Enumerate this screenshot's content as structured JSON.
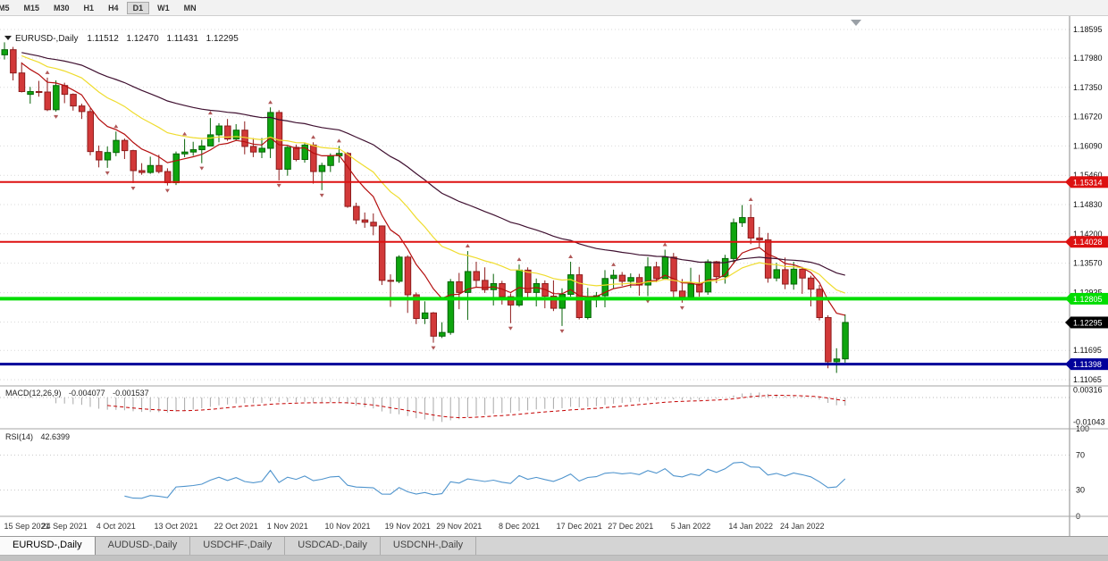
{
  "toolbar": {
    "periods": [
      "M5",
      "M15",
      "M30",
      "H1",
      "H4",
      "D1",
      "W1",
      "MN"
    ],
    "active_period": "D1"
  },
  "chart": {
    "symbol": "EURUSD-,Daily",
    "ohlc": {
      "open": "1.11512",
      "high": "1.12470",
      "low": "1.11431",
      "close": "1.12295"
    }
  },
  "chart_data": {
    "type": "candlestick",
    "title": "EURUSD-,Daily",
    "timeframe": "Daily",
    "y_axis_labels": [
      "1.18595",
      "1.17980",
      "1.17350",
      "1.16720",
      "1.16090",
      "1.15460",
      "1.14830",
      "1.14200",
      "1.13570",
      "1.12935",
      "1.12305",
      "1.11695",
      "1.11065"
    ],
    "x_labels": [
      {
        "text": "15 Sep 2021",
        "i": 0
      },
      {
        "text": "24 Sep 2021",
        "i": 7
      },
      {
        "text": "4 Oct 2021",
        "i": 13
      },
      {
        "text": "13 Oct 2021",
        "i": 20
      },
      {
        "text": "22 Oct 2021",
        "i": 27
      },
      {
        "text": "1 Nov 2021",
        "i": 33
      },
      {
        "text": "10 Nov 2021",
        "i": 40
      },
      {
        "text": "19 Nov 2021",
        "i": 47
      },
      {
        "text": "29 Nov 2021",
        "i": 53
      },
      {
        "text": "8 Dec 2021",
        "i": 60
      },
      {
        "text": "17 Dec 2021",
        "i": 67
      },
      {
        "text": "27 Dec 2021",
        "i": 73
      },
      {
        "text": "5 Jan 2022",
        "i": 80
      },
      {
        "text": "14 Jan 2022",
        "i": 87
      },
      {
        "text": "24 Jan 2022",
        "i": 93
      }
    ],
    "candles": [
      [
        1.1805,
        1.1832,
        1.1795,
        1.1816
      ],
      [
        1.1816,
        1.1822,
        1.175,
        1.1766
      ],
      [
        1.1766,
        1.1789,
        1.1724,
        1.1726
      ],
      [
        1.172,
        1.1736,
        1.17,
        1.1726
      ],
      [
        1.1726,
        1.1749,
        1.1715,
        1.1725
      ],
      [
        1.1725,
        1.1756,
        1.1684,
        1.1687
      ],
      [
        1.1687,
        1.175,
        1.1683,
        1.1739
      ],
      [
        1.1739,
        1.1745,
        1.1701,
        1.172
      ],
      [
        1.172,
        1.1722,
        1.1685,
        1.1695
      ],
      [
        1.1695,
        1.17,
        1.1667,
        1.1683
      ],
      [
        1.1683,
        1.169,
        1.1589,
        1.1597
      ],
      [
        1.1597,
        1.161,
        1.1563,
        1.1579
      ],
      [
        1.1579,
        1.1608,
        1.1562,
        1.1595
      ],
      [
        1.1595,
        1.164,
        1.1587,
        1.1621
      ],
      [
        1.1621,
        1.1625,
        1.1581,
        1.1599
      ],
      [
        1.1599,
        1.1601,
        1.1529,
        1.1556
      ],
      [
        1.1556,
        1.1572,
        1.1547,
        1.1552
      ],
      [
        1.1552,
        1.1586,
        1.1549,
        1.1567
      ],
      [
        1.1567,
        1.159,
        1.155,
        1.1554
      ],
      [
        1.1554,
        1.1561,
        1.1524,
        1.153
      ],
      [
        1.153,
        1.1597,
        1.1525,
        1.1592
      ],
      [
        1.1592,
        1.1624,
        1.1585,
        1.1596
      ],
      [
        1.1596,
        1.1618,
        1.1588,
        1.1601
      ],
      [
        1.1601,
        1.1622,
        1.1572,
        1.1609
      ],
      [
        1.1609,
        1.1669,
        1.1609,
        1.1633
      ],
      [
        1.1633,
        1.1658,
        1.1617,
        1.1652
      ],
      [
        1.1652,
        1.1667,
        1.162,
        1.1624
      ],
      [
        1.1624,
        1.1656,
        1.162,
        1.1643
      ],
      [
        1.1643,
        1.1662,
        1.1591,
        1.1608
      ],
      [
        1.1608,
        1.1626,
        1.1585,
        1.1596
      ],
      [
        1.1596,
        1.1626,
        1.1583,
        1.1604
      ],
      [
        1.1604,
        1.1692,
        1.1583,
        1.1681
      ],
      [
        1.1681,
        1.1686,
        1.1535,
        1.1559
      ],
      [
        1.1559,
        1.1609,
        1.1545,
        1.1606
      ],
      [
        1.1606,
        1.1612,
        1.1576,
        1.158
      ],
      [
        1.158,
        1.1616,
        1.1573,
        1.1611
      ],
      [
        1.1611,
        1.1617,
        1.1528,
        1.1554
      ],
      [
        1.1554,
        1.1573,
        1.1514,
        1.1567
      ],
      [
        1.1567,
        1.1593,
        1.1553,
        1.1588
      ],
      [
        1.1588,
        1.1609,
        1.1573,
        1.1593
      ],
      [
        1.1593,
        1.1596,
        1.1476,
        1.1479
      ],
      [
        1.1479,
        1.1487,
        1.1441,
        1.145
      ],
      [
        1.145,
        1.1466,
        1.1433,
        1.1445
      ],
      [
        1.1445,
        1.1464,
        1.1417,
        1.1437
      ],
      [
        1.1437,
        1.1438,
        1.131,
        1.132
      ],
      [
        1.132,
        1.1333,
        1.1263,
        1.1318
      ],
      [
        1.1318,
        1.1374,
        1.1314,
        1.137
      ],
      [
        1.137,
        1.1374,
        1.125,
        1.1289
      ],
      [
        1.1289,
        1.1294,
        1.1226,
        1.1238
      ],
      [
        1.1238,
        1.1275,
        1.1226,
        1.125
      ],
      [
        1.125,
        1.1252,
        1.1186,
        1.12
      ],
      [
        1.12,
        1.123,
        1.1196,
        1.1208
      ],
      [
        1.1208,
        1.1323,
        1.1203,
        1.1317
      ],
      [
        1.1317,
        1.1336,
        1.1258,
        1.1294
      ],
      [
        1.1294,
        1.1383,
        1.1235,
        1.1339
      ],
      [
        1.1339,
        1.136,
        1.1305,
        1.132
      ],
      [
        1.132,
        1.1348,
        1.1293,
        1.13
      ],
      [
        1.13,
        1.1334,
        1.1266,
        1.1313
      ],
      [
        1.1313,
        1.1319,
        1.1268,
        1.1285
      ],
      [
        1.1285,
        1.1292,
        1.1228,
        1.1267
      ],
      [
        1.1267,
        1.1354,
        1.1263,
        1.1342
      ],
      [
        1.1342,
        1.1348,
        1.128,
        1.1294
      ],
      [
        1.1294,
        1.1324,
        1.1264,
        1.1313
      ],
      [
        1.1313,
        1.132,
        1.126,
        1.1286
      ],
      [
        1.1286,
        1.132,
        1.1254,
        1.126
      ],
      [
        1.126,
        1.1303,
        1.1222,
        1.129
      ],
      [
        1.129,
        1.136,
        1.1285,
        1.1332
      ],
      [
        1.1332,
        1.1349,
        1.1236,
        1.124
      ],
      [
        1.124,
        1.1304,
        1.1236,
        1.1278
      ],
      [
        1.1278,
        1.1295,
        1.1262,
        1.1287
      ],
      [
        1.1287,
        1.1342,
        1.1262,
        1.1324
      ],
      [
        1.1324,
        1.1343,
        1.1303,
        1.1331
      ],
      [
        1.1331,
        1.1338,
        1.1308,
        1.1318
      ],
      [
        1.1318,
        1.1335,
        1.1304,
        1.1326
      ],
      [
        1.1326,
        1.1334,
        1.1287,
        1.131
      ],
      [
        1.131,
        1.137,
        1.1286,
        1.1349
      ],
      [
        1.1349,
        1.136,
        1.1316,
        1.1324
      ],
      [
        1.1324,
        1.1386,
        1.1321,
        1.137
      ],
      [
        1.137,
        1.1379,
        1.1279,
        1.1297
      ],
      [
        1.1297,
        1.1323,
        1.1272,
        1.1284
      ],
      [
        1.1284,
        1.1347,
        1.128,
        1.1312
      ],
      [
        1.1312,
        1.1332,
        1.1285,
        1.1295
      ],
      [
        1.1295,
        1.1365,
        1.1289,
        1.136
      ],
      [
        1.136,
        1.1362,
        1.1314,
        1.1328
      ],
      [
        1.1328,
        1.1375,
        1.1313,
        1.1367
      ],
      [
        1.1367,
        1.1453,
        1.1355,
        1.1444
      ],
      [
        1.1444,
        1.1482,
        1.1435,
        1.1455
      ],
      [
        1.1455,
        1.1483,
        1.1398,
        1.1411
      ],
      [
        1.1411,
        1.1435,
        1.1392,
        1.1407
      ],
      [
        1.1407,
        1.1422,
        1.1315,
        1.1325
      ],
      [
        1.1325,
        1.1358,
        1.1318,
        1.1343
      ],
      [
        1.1343,
        1.1369,
        1.1301,
        1.1312
      ],
      [
        1.1312,
        1.136,
        1.13,
        1.1344
      ],
      [
        1.1344,
        1.1349,
        1.1291,
        1.1325
      ],
      [
        1.1325,
        1.133,
        1.1264,
        1.1301
      ],
      [
        1.1301,
        1.131,
        1.1234,
        1.124
      ],
      [
        1.124,
        1.1245,
        1.1131,
        1.1145
      ],
      [
        1.1145,
        1.1174,
        1.1121,
        1.1151
      ],
      [
        1.11512,
        1.1247,
        1.11431,
        1.12295
      ]
    ],
    "horizontal_lines": [
      {
        "price": 1.15314,
        "label": "1.15314",
        "color": "#dd1010",
        "thickness": 2
      },
      {
        "price": 1.14028,
        "label": "1.14028",
        "color": "#dd1010",
        "thickness": 2
      },
      {
        "price": 1.12805,
        "label": "1.12805",
        "color": "#00dd00",
        "thickness": 4
      },
      {
        "price": 1.11398,
        "label": "1.11398",
        "color": "#00009a",
        "thickness": 3
      }
    ],
    "current_price_label": {
      "value": "1.12295",
      "bg": "#000000"
    },
    "moving_averages": [
      {
        "period": 8,
        "color": "#b40f0f"
      },
      {
        "period": 20,
        "color": "#efdc2e"
      },
      {
        "period": 44,
        "color": "#3f1030"
      }
    ],
    "colors": {
      "bull": "#0ea50e",
      "bull_border": "#076307",
      "bear": "#d23939",
      "bear_border": "#8e1c1c",
      "grid": "#d9d9d9"
    },
    "indicators": [
      {
        "name": "MACD",
        "label": "MACD(12,26,9)",
        "values": [
          "-0.004077",
          "-0.001537"
        ],
        "axis_labels": [
          "0.00316",
          "-0.01043"
        ],
        "colors": {
          "histogram": "#a9a9a9",
          "signal": "#c40000"
        }
      },
      {
        "name": "RSI",
        "label": "RSI(14)",
        "value": "42.6399",
        "axis_labels": [
          "100",
          "70",
          "30",
          "0"
        ],
        "levels": [
          30,
          70
        ],
        "color": "#4f94cd"
      }
    ]
  },
  "tabs": [
    {
      "label": "EURUSD-,Daily",
      "active": true
    },
    {
      "label": "AUDUSD-,Daily",
      "active": false
    },
    {
      "label": "USDCHF-,Daily",
      "active": false
    },
    {
      "label": "USDCAD-,Daily",
      "active": false
    },
    {
      "label": "USDCNH-,Daily",
      "active": false
    }
  ]
}
